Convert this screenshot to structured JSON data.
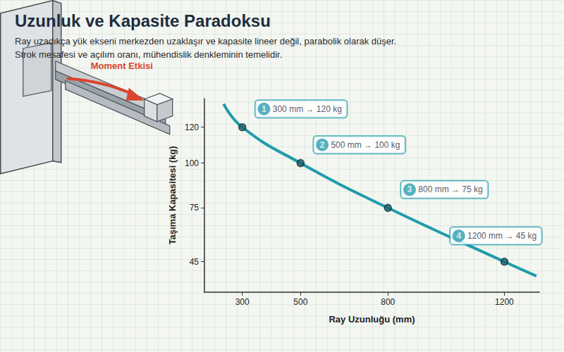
{
  "chart_data": {
    "type": "line",
    "title": "Uzunluk ve Kapasite Paradoksu",
    "subtitle": [
      "Ray uzadıkça yük ekseni merkezden uzaklaşır ve kapasite lineer değil, parabolik olarak düşer.",
      "Strok mesafesi ve açılım oranı, mühendislik denkleminin temelidir."
    ],
    "illustration_label": "Moment Etkisi",
    "x_label": "Ray Uzunluğu (mm)",
    "y_label": "Taşıma Kapasitesi (kg)",
    "x": [
      236,
      300,
      500,
      800,
      1200,
      1310
    ],
    "values": [
      133,
      120,
      100,
      75,
      45,
      37
    ],
    "color": "#1f9cab",
    "annotations": [
      {
        "number": 1,
        "x": 300,
        "y": 120,
        "label": "300 mm → 120 kg"
      },
      {
        "number": 2,
        "x": 500,
        "y": 100,
        "label": "500 mm → 100 kg"
      },
      {
        "number": 3,
        "x": 800,
        "y": 75,
        "label": "800 mm → 75 kg"
      },
      {
        "number": 4,
        "x": 1200,
        "y": 45,
        "label": "1200 mm → 45 kg"
      }
    ],
    "xlim": [
      170,
      1320
    ],
    "ylim": [
      28,
      136
    ],
    "xticks": [
      300,
      500,
      800,
      1200
    ],
    "yticks": [
      45,
      75,
      100,
      120
    ],
    "grid": false
  }
}
